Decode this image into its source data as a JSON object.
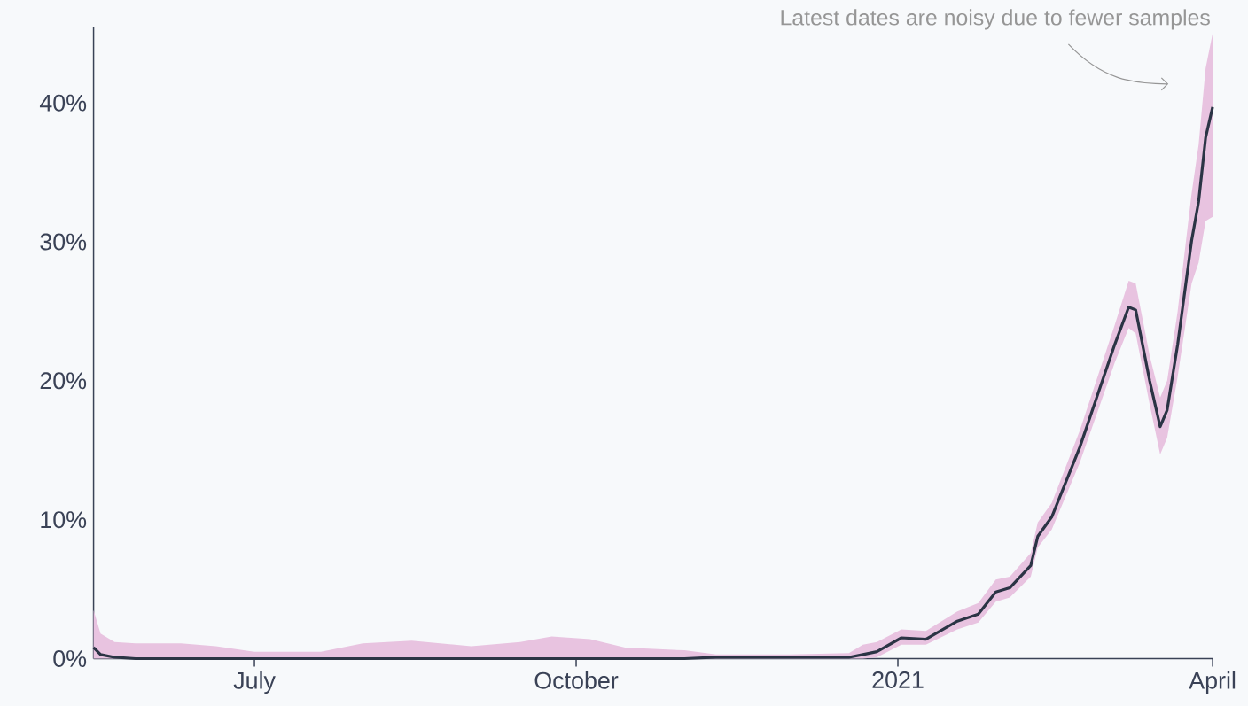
{
  "chart_data": {
    "type": "line",
    "x": [
      "2020-05-16",
      "2020-05-18",
      "2020-05-22",
      "2020-05-28",
      "2020-06-10",
      "2020-06-20",
      "2020-07-01",
      "2020-07-20",
      "2020-08-01",
      "2020-08-15",
      "2020-09-01",
      "2020-09-15",
      "2020-09-24",
      "2020-10-05",
      "2020-10-15",
      "2020-11-01",
      "2020-11-10",
      "2020-12-01",
      "2020-12-18",
      "2020-12-22",
      "2020-12-26",
      "2021-01-02",
      "2021-01-09",
      "2021-01-18",
      "2021-01-24",
      "2021-01-29",
      "2021-02-02",
      "2021-02-08",
      "2021-02-10",
      "2021-02-14",
      "2021-02-18",
      "2021-02-22",
      "2021-02-27",
      "2021-03-04",
      "2021-03-08",
      "2021-03-10",
      "2021-03-14",
      "2021-03-17",
      "2021-03-19",
      "2021-03-22",
      "2021-03-26",
      "2021-03-28",
      "2021-03-30",
      "2021-04-01"
    ],
    "series": [
      {
        "color": "#2b3445",
        "values": [
          0.8,
          0.3,
          0.1,
          0,
          0,
          0,
          0,
          0,
          0,
          0,
          0,
          0,
          0,
          0,
          0,
          0,
          0.1,
          0.1,
          0.1,
          0.3,
          0.5,
          1.5,
          1.4,
          2.7,
          3.2,
          4.8,
          5.1,
          6.7,
          8.8,
          10.2,
          12.7,
          15.2,
          18.9,
          22.6,
          25.3,
          25.1,
          20.0,
          16.7,
          17.9,
          22.6,
          30.1,
          32.9,
          37.5,
          39.7
        ],
        "lower": [
          0,
          0,
          0,
          0,
          0,
          0,
          0,
          0,
          0,
          0,
          0,
          0,
          0,
          0,
          0,
          0,
          0,
          0,
          0,
          0,
          0.1,
          1.0,
          1.0,
          2.1,
          2.6,
          4.1,
          4.4,
          5.9,
          8.0,
          9.3,
          11.7,
          14.1,
          17.7,
          21.3,
          23.8,
          23.4,
          18.3,
          14.7,
          15.9,
          20.3,
          27.0,
          28.5,
          31.5,
          31.8
        ],
        "upper": [
          3.5,
          1.8,
          1.2,
          1.1,
          1.1,
          0.9,
          0.5,
          0.5,
          1.1,
          1.3,
          0.9,
          1.2,
          1.6,
          1.4,
          0.8,
          0.6,
          0.3,
          0.3,
          0.4,
          1.0,
          1.2,
          2.1,
          2.0,
          3.4,
          4.0,
          5.7,
          5.9,
          7.6,
          9.8,
          11.2,
          13.8,
          16.4,
          20.2,
          24.0,
          27.2,
          27.0,
          21.8,
          18.8,
          20.0,
          25.0,
          33.5,
          37.0,
          42.5,
          45.0
        ]
      }
    ],
    "xlim": [
      "2020-05-16",
      "2021-04-01"
    ],
    "xticks": [
      {
        "value": "2020-07-01",
        "label": "July"
      },
      {
        "value": "2020-10-01",
        "label": "October"
      },
      {
        "value": "2021-01-01",
        "label": "2021"
      },
      {
        "value": "2021-04-01",
        "label": "April"
      }
    ],
    "ylim": [
      0,
      45.5
    ],
    "yticks": [
      {
        "value": 0,
        "label": "0%"
      },
      {
        "value": 10,
        "label": "10%"
      },
      {
        "value": 20,
        "label": "20%"
      },
      {
        "value": 30,
        "label": "30%"
      },
      {
        "value": 40,
        "label": "40%"
      }
    ],
    "annotations": [
      "Latest dates are noisy due to fewer samples"
    ]
  }
}
